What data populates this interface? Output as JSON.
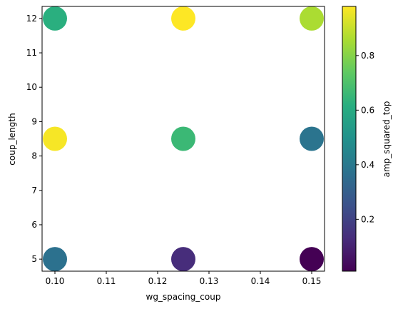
{
  "chart_data": {
    "type": "scatter",
    "title": "",
    "xlabel": "wg_spacing_coup",
    "ylabel": "coup_length",
    "xlim": [
      0.0975,
      0.1525
    ],
    "ylim": [
      4.65,
      12.35
    ],
    "x_ticks": [
      0.1,
      0.11,
      0.12,
      0.13,
      0.14,
      0.15
    ],
    "x_tick_labels": [
      "0.10",
      "0.11",
      "0.12",
      "0.13",
      "0.14",
      "0.15"
    ],
    "y_ticks": [
      5,
      6,
      7,
      8,
      9,
      10,
      11,
      12
    ],
    "y_tick_labels": [
      "5",
      "6",
      "7",
      "8",
      "9",
      "10",
      "11",
      "12"
    ],
    "grid": false,
    "colormap": "viridis",
    "colorbar": {
      "label": "amp_squared_top",
      "range": [
        0.01,
        0.98
      ],
      "ticks": [
        0.2,
        0.4,
        0.6,
        0.8
      ],
      "tick_labels": [
        "0.2",
        "0.4",
        "0.6",
        "0.8"
      ]
    },
    "points": [
      {
        "x": 0.1,
        "y": 5.0,
        "value": 0.37
      },
      {
        "x": 0.1,
        "y": 8.5,
        "value": 0.97
      },
      {
        "x": 0.1,
        "y": 12.0,
        "value": 0.62
      },
      {
        "x": 0.125,
        "y": 5.0,
        "value": 0.13
      },
      {
        "x": 0.125,
        "y": 8.5,
        "value": 0.66
      },
      {
        "x": 0.125,
        "y": 12.0,
        "value": 0.98
      },
      {
        "x": 0.15,
        "y": 5.0,
        "value": 0.01
      },
      {
        "x": 0.15,
        "y": 8.5,
        "value": 0.38
      },
      {
        "x": 0.15,
        "y": 12.0,
        "value": 0.86
      }
    ]
  }
}
